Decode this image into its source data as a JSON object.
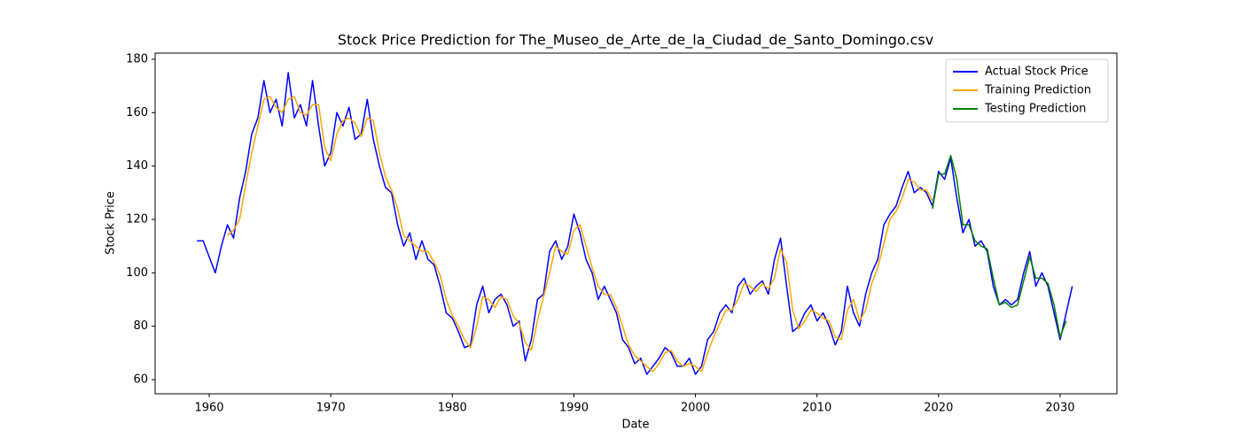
{
  "chart_data": {
    "type": "line",
    "title": "Stock Price Prediction for The_Museo_de_Arte_de_la_Ciudad_de_Santo_Domingo.csv",
    "xlabel": "Date",
    "ylabel": "Stock Price",
    "x": [
      1959.0,
      1959.5,
      1960.0,
      1960.5,
      1961.0,
      1961.5,
      1962.0,
      1962.5,
      1963.0,
      1963.5,
      1964.0,
      1964.5,
      1965.0,
      1965.5,
      1966.0,
      1966.5,
      1967.0,
      1967.5,
      1968.0,
      1968.5,
      1969.0,
      1969.5,
      1970.0,
      1970.5,
      1971.0,
      1971.5,
      1972.0,
      1972.5,
      1973.0,
      1973.5,
      1974.0,
      1974.5,
      1975.0,
      1975.5,
      1976.0,
      1976.5,
      1977.0,
      1977.5,
      1978.0,
      1978.5,
      1979.0,
      1979.5,
      1980.0,
      1980.5,
      1981.0,
      1981.5,
      1982.0,
      1982.5,
      1983.0,
      1983.5,
      1984.0,
      1984.5,
      1985.0,
      1985.5,
      1986.0,
      1986.5,
      1987.0,
      1987.5,
      1988.0,
      1988.5,
      1989.0,
      1989.5,
      1990.0,
      1990.5,
      1991.0,
      1991.5,
      1992.0,
      1992.5,
      1993.0,
      1993.5,
      1994.0,
      1994.5,
      1995.0,
      1995.5,
      1996.0,
      1996.5,
      1997.0,
      1997.5,
      1998.0,
      1998.5,
      1999.0,
      1999.5,
      2000.0,
      2000.5,
      2001.0,
      2001.5,
      2002.0,
      2002.5,
      2003.0,
      2003.5,
      2004.0,
      2004.5,
      2005.0,
      2005.5,
      2006.0,
      2006.5,
      2007.0,
      2007.5,
      2008.0,
      2008.5,
      2009.0,
      2009.5,
      2010.0,
      2010.5,
      2011.0,
      2011.5,
      2012.0,
      2012.5,
      2013.0,
      2013.5,
      2014.0,
      2014.5,
      2015.0,
      2015.5,
      2016.0,
      2016.5,
      2017.0,
      2017.5,
      2018.0,
      2018.5,
      2019.0,
      2019.5,
      2020.0,
      2020.5,
      2021.0,
      2021.5,
      2022.0,
      2022.5,
      2023.0,
      2023.5,
      2024.0,
      2024.5,
      2025.0,
      2025.5,
      2026.0,
      2026.5,
      2027.0,
      2027.5,
      2028.0,
      2028.5,
      2029.0,
      2029.5,
      2030.0,
      2030.5,
      2031.0
    ],
    "series": [
      {
        "name": "Actual Stock Price",
        "color": "#0000ff",
        "values": [
          112,
          112,
          106,
          100,
          110,
          118,
          113,
          128,
          138,
          152,
          158,
          172,
          160,
          165,
          155,
          175,
          158,
          163,
          155,
          172,
          155,
          140,
          145,
          160,
          155,
          162,
          150,
          152,
          165,
          150,
          140,
          132,
          130,
          118,
          110,
          115,
          105,
          112,
          105,
          103,
          95,
          85,
          83,
          78,
          72,
          73,
          88,
          95,
          85,
          90,
          92,
          88,
          80,
          82,
          67,
          75,
          90,
          92,
          108,
          112,
          105,
          110,
          122,
          115,
          105,
          100,
          90,
          95,
          90,
          85,
          75,
          72,
          66,
          68,
          62,
          65,
          68,
          72,
          70,
          65,
          65,
          68,
          62,
          65,
          75,
          78,
          85,
          88,
          85,
          95,
          98,
          92,
          95,
          97,
          92,
          105,
          113,
          95,
          78,
          80,
          85,
          88,
          82,
          85,
          80,
          73,
          78,
          95,
          85,
          80,
          92,
          100,
          105,
          118,
          122,
          125,
          132,
          138,
          130,
          132,
          130,
          125,
          138,
          135,
          143,
          128,
          115,
          120,
          110,
          112,
          108,
          95,
          88,
          90,
          88,
          90,
          100,
          108,
          95,
          100,
          95,
          85,
          75,
          85,
          95
        ]
      },
      {
        "name": "Training Prediction",
        "color": "#ffa500",
        "values": [
          null,
          null,
          null,
          null,
          null,
          114,
          116,
          120,
          133,
          145,
          155,
          165,
          166,
          162,
          160,
          165,
          166,
          160,
          159,
          163,
          163,
          147,
          142,
          152,
          157,
          158,
          156,
          151,
          158,
          157,
          145,
          136,
          131,
          124,
          114,
          112,
          110,
          108,
          108,
          104,
          99,
          90,
          84,
          80,
          75,
          72,
          80,
          91,
          90,
          87,
          91,
          90,
          84,
          81,
          74,
          71,
          82,
          91,
          100,
          110,
          108,
          107,
          116,
          118,
          110,
          102,
          95,
          92,
          92,
          87,
          80,
          73,
          69,
          67,
          65,
          63,
          66,
          70,
          71,
          67,
          65,
          66,
          65,
          63,
          70,
          76,
          81,
          86,
          86,
          90,
          96,
          95,
          93,
          96,
          94,
          98,
          109,
          104,
          86,
          79,
          82,
          86,
          85,
          83,
          82,
          76,
          75,
          86,
          90,
          82,
          86,
          96,
          102,
          111,
          120,
          123,
          128,
          135,
          134,
          131,
          131,
          127,
          null,
          null,
          null,
          null,
          null,
          null,
          null,
          null,
          null,
          null,
          null,
          null,
          null,
          null,
          null,
          null,
          null,
          null,
          null,
          null,
          null,
          null,
          null
        ]
      },
      {
        "name": "Testing Prediction",
        "color": "#008000",
        "values": [
          null,
          null,
          null,
          null,
          null,
          null,
          null,
          null,
          null,
          null,
          null,
          null,
          null,
          null,
          null,
          null,
          null,
          null,
          null,
          null,
          null,
          null,
          null,
          null,
          null,
          null,
          null,
          null,
          null,
          null,
          null,
          null,
          null,
          null,
          null,
          null,
          null,
          null,
          null,
          null,
          null,
          null,
          null,
          null,
          null,
          null,
          null,
          null,
          null,
          null,
          null,
          null,
          null,
          null,
          null,
          null,
          null,
          null,
          null,
          null,
          null,
          null,
          null,
          null,
          null,
          null,
          null,
          null,
          null,
          null,
          null,
          null,
          null,
          null,
          null,
          null,
          null,
          null,
          null,
          null,
          null,
          null,
          null,
          null,
          null,
          null,
          null,
          null,
          null,
          null,
          null,
          null,
          null,
          null,
          null,
          null,
          null,
          null,
          null,
          null,
          null,
          null,
          null,
          null,
          null,
          null,
          null,
          null,
          null,
          null,
          null,
          null,
          null,
          null,
          null,
          null,
          null,
          null,
          null,
          null,
          null,
          124,
          137,
          137,
          144,
          135,
          118,
          118,
          112,
          110,
          109,
          98,
          88,
          89,
          87,
          88,
          97,
          106,
          98,
          98,
          96,
          88,
          76,
          82,
          null
        ]
      }
    ],
    "xlim": [
      1955.55,
      2034.67
    ],
    "ylim": [
      54.7,
      182.3
    ],
    "xticks": [
      1960,
      1970,
      1980,
      1990,
      2000,
      2010,
      2020,
      2030
    ],
    "yticks": [
      60,
      80,
      100,
      120,
      140,
      160,
      180
    ],
    "grid": false,
    "legend": "upper right"
  }
}
